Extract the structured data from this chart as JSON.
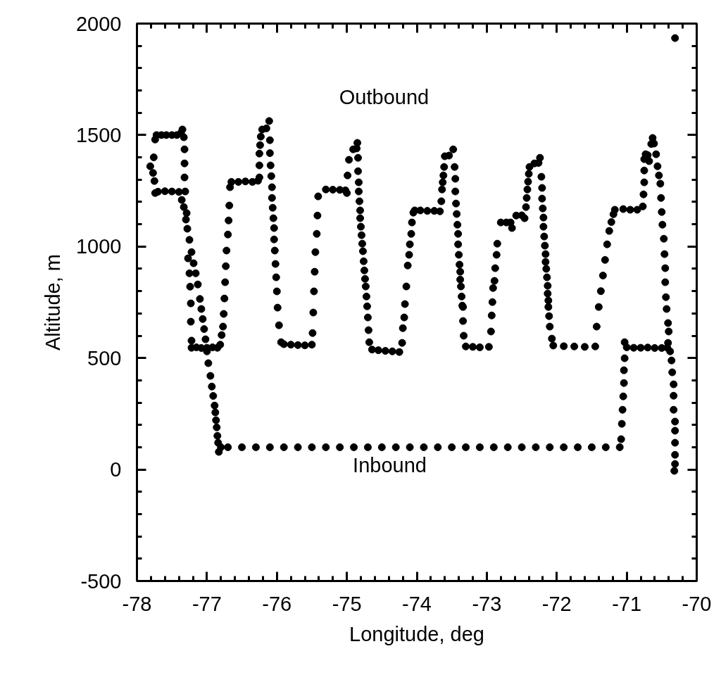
{
  "chart_data": {
    "type": "scatter",
    "xlabel": "Longitude, deg",
    "ylabel": "Altitude, m",
    "marker": "circle",
    "xlim": [
      -78,
      -70
    ],
    "ylim": [
      -500,
      2000
    ],
    "xticks": [
      -78,
      {
        "value": -77.8,
        "label": null
      },
      {
        "value": -77.6,
        "label": null
      },
      {
        "value": -77.4,
        "label": null
      },
      {
        "value": -77.2,
        "label": null
      },
      -77,
      {
        "value": -76.8,
        "label": null
      },
      {
        "value": -76.6,
        "label": null
      },
      {
        "value": -76.4,
        "label": null
      },
      {
        "value": -76.2,
        "label": null
      },
      -76,
      {
        "value": -75.8,
        "label": null
      },
      {
        "value": -75.6,
        "label": null
      },
      {
        "value": -75.4,
        "label": null
      },
      {
        "value": -75.2,
        "label": null
      },
      -75,
      {
        "value": -74.8,
        "label": null
      },
      {
        "value": -74.6,
        "label": null
      },
      {
        "value": -74.4,
        "label": null
      },
      {
        "value": -74.2,
        "label": null
      },
      -74,
      {
        "value": -73.8,
        "label": null
      },
      {
        "value": -73.6,
        "label": null
      },
      {
        "value": -73.4,
        "label": null
      },
      {
        "value": -73.2,
        "label": null
      },
      -73,
      {
        "value": -72.8,
        "label": null
      },
      {
        "value": -72.6,
        "label": null
      },
      {
        "value": -72.4,
        "label": null
      },
      {
        "value": -72.2,
        "label": null
      },
      -72,
      {
        "value": -71.8,
        "label": null
      },
      {
        "value": -71.6,
        "label": null
      },
      {
        "value": -71.4,
        "label": null
      },
      {
        "value": -71.2,
        "label": null
      },
      -71,
      {
        "value": -70.8,
        "label": null
      },
      {
        "value": -70.6,
        "label": null
      },
      {
        "value": -70.4,
        "label": null
      },
      {
        "value": -70.2,
        "label": null
      },
      -70
    ],
    "yticks": [
      -500,
      {
        "value": -400,
        "label": null
      },
      {
        "value": -300,
        "label": null
      },
      {
        "value": -200,
        "label": null
      },
      {
        "value": -100,
        "label": null
      },
      0,
      {
        "value": 100,
        "label": null
      },
      {
        "value": 200,
        "label": null
      },
      {
        "value": 300,
        "label": null
      },
      {
        "value": 400,
        "label": null
      },
      500,
      {
        "value": 600,
        "label": null
      },
      {
        "value": 700,
        "label": null
      },
      {
        "value": 800,
        "label": null
      },
      {
        "value": 900,
        "label": null
      },
      1000,
      {
        "value": 1100,
        "label": null
      },
      {
        "value": 1200,
        "label": null
      },
      {
        "value": 1300,
        "label": null
      },
      {
        "value": 1400,
        "label": null
      },
      1500,
      {
        "value": 1600,
        "label": null
      },
      {
        "value": 1700,
        "label": null
      },
      {
        "value": 1800,
        "label": null
      },
      {
        "value": 1900,
        "label": null
      },
      2000
    ],
    "annotations": [
      "Outbound",
      "Inbound"
    ],
    "series": [
      {
        "color": "#000000",
        "x": [
          -77.81,
          -77.77,
          -77.76,
          -77.74,
          -77.72,
          -77.65,
          -77.58,
          -77.5,
          -77.43,
          -77.37,
          -77.35,
          -77.33,
          -77.32,
          -77.32,
          -77.32,
          -77.31,
          -77.29,
          -77.27,
          -77.25,
          -77.24,
          -77.23,
          -77.23,
          -77.22,
          -77.22,
          -77.15,
          -77.08,
          -77.0,
          -76.92,
          -76.85,
          -76.81,
          -76.79,
          -76.77,
          -76.76,
          -76.75,
          -76.74,
          -76.73,
          -76.72,
          -76.7,
          -76.69,
          -76.68,
          -76.67,
          -76.65,
          -76.55,
          -76.45,
          -76.35,
          -76.27,
          -76.25,
          -76.25,
          -76.25,
          -76.24,
          -76.23,
          -76.21,
          -76.15,
          -76.11,
          -76.1,
          -76.1,
          -76.09,
          -76.08,
          -76.07,
          -76.07,
          -76.06,
          -76.05,
          -76.04,
          -76.04,
          -76.03,
          -76.02,
          -76.01,
          -76.0,
          -75.99,
          -75.97,
          -75.94,
          -75.9,
          -75.8,
          -75.7,
          -75.6,
          -75.5,
          -75.49,
          -75.48,
          -75.47,
          -75.46,
          -75.45,
          -75.43,
          -75.42,
          -75.41,
          -75.3,
          -75.2,
          -75.1,
          -75.02,
          -75.0,
          -74.99,
          -74.97,
          -74.91,
          -74.86,
          -74.85,
          -74.84,
          -74.84,
          -74.83,
          -74.83,
          -74.82,
          -74.81,
          -74.81,
          -74.8,
          -74.79,
          -74.78,
          -74.77,
          -74.76,
          -74.75,
          -74.74,
          -74.73,
          -74.72,
          -74.71,
          -74.7,
          -74.69,
          -74.68,
          -74.64,
          -74.55,
          -74.45,
          -74.35,
          -74.25,
          -74.21,
          -74.2,
          -74.18,
          -74.17,
          -74.15,
          -74.13,
          -74.11,
          -74.1,
          -74.08,
          -74.07,
          -74.05,
          -74.03,
          -73.95,
          -73.85,
          -73.75,
          -73.67,
          -73.65,
          -73.64,
          -73.63,
          -73.62,
          -73.61,
          -73.6,
          -73.54,
          -73.48,
          -73.46,
          -73.45,
          -73.45,
          -73.44,
          -73.43,
          -73.42,
          -73.41,
          -73.41,
          -73.4,
          -73.39,
          -73.38,
          -73.38,
          -73.37,
          -73.36,
          -73.35,
          -73.34,
          -73.34,
          -73.33,
          -73.3,
          -73.2,
          -73.1,
          -72.97,
          -72.94,
          -72.93,
          -72.92,
          -72.91,
          -72.89,
          -72.88,
          -72.86,
          -72.85,
          -72.8,
          -72.72,
          -72.66,
          -72.64,
          -72.58,
          -72.5,
          -72.46,
          -72.44,
          -72.43,
          -72.42,
          -72.41,
          -72.4,
          -72.39,
          -72.32,
          -72.26,
          -72.24,
          -72.22,
          -72.21,
          -72.21,
          -72.2,
          -72.19,
          -72.19,
          -72.18,
          -72.17,
          -72.16,
          -72.16,
          -72.15,
          -72.14,
          -72.13,
          -72.13,
          -72.12,
          -72.12,
          -72.11,
          -72.1,
          -72.07,
          -72.05,
          -71.9,
          -71.75,
          -71.6,
          -71.45,
          -71.43,
          -71.4,
          -71.37,
          -71.34,
          -71.31,
          -71.28,
          -71.25,
          -71.22,
          -71.19,
          -71.17,
          -71.05,
          -70.95,
          -70.85,
          -70.77,
          -70.76,
          -70.75,
          -70.75,
          -70.75,
          -70.73,
          -70.7,
          -70.68,
          -70.65,
          -70.63,
          -70.61,
          -70.58,
          -70.56,
          -70.54,
          -70.52,
          -70.51,
          -70.5,
          -70.49,
          -70.47,
          -70.46,
          -70.45,
          -70.45,
          -70.44,
          -70.43,
          -70.41,
          -70.4,
          -70.41,
          -70.38,
          -70.36,
          -70.35,
          -70.33,
          -70.33,
          -70.33,
          -70.31,
          -70.31,
          -70.31,
          -70.31,
          -70.31,
          -70.32
        ],
        "values": [
          1360,
          1330,
          1400,
          1480,
          1500,
          1500,
          1500,
          1500,
          1500,
          1510,
          1525,
          1490,
          1436,
          1373,
          1310,
          1247,
          1150,
          947,
          880,
          820,
          745,
          663,
          578,
          546,
          548,
          545,
          546,
          548,
          546,
          560,
          603,
          641,
          698,
          767,
          840,
          912,
          982,
          1054,
          1117,
          1184,
          1266,
          1290,
          1290,
          1292,
          1290,
          1295,
          1310,
          1364,
          1417,
          1455,
          1493,
          1525,
          1530,
          1563,
          1477,
          1419,
          1364,
          1316,
          1266,
          1218,
          1174,
          1127,
          1083,
          1032,
          982,
          922,
          862,
          799,
          726,
          647,
          571,
          562,
          560,
          558,
          557,
          560,
          612,
          704,
          799,
          887,
          975,
          1057,
          1139,
          1225,
          1256,
          1255,
          1254,
          1252,
          1240,
          1319,
          1389,
          1436,
          1440,
          1465,
          1398,
          1338,
          1288,
          1247,
          1203,
          1162,
          1127,
          1089,
          1051,
          1013,
          979,
          934,
          893,
          855,
          821,
          776,
          732,
          682,
          625,
          571,
          538,
          535,
          532,
          530,
          527,
          568,
          634,
          682,
          742,
          821,
          915,
          963,
          1010,
          1057,
          1108,
          1152,
          1162,
          1162,
          1160,
          1160,
          1158,
          1203,
          1256,
          1288,
          1319,
          1357,
          1405,
          1408,
          1436,
          1357,
          1304,
          1247,
          1193,
          1146,
          1098,
          1057,
          1010,
          963,
          919,
          887,
          852,
          821,
          776,
          735,
          729,
          666,
          600,
          552,
          550,
          548,
          550,
          619,
          691,
          751,
          814,
          846,
          903,
          963,
          1013,
          1108,
          1108,
          1108,
          1083,
          1139,
          1140,
          1127,
          1177,
          1218,
          1256,
          1291,
          1326,
          1357,
          1373,
          1375,
          1398,
          1313,
          1263,
          1215,
          1171,
          1130,
          1089,
          1045,
          1004,
          966,
          931,
          900,
          862,
          824,
          789,
          758,
          729,
          688,
          641,
          587,
          556,
          553,
          552,
          550,
          552,
          641,
          729,
          800,
          870,
          940,
          1010,
          1070,
          1110,
          1145,
          1165,
          1168,
          1165,
          1165,
          1180,
          1234,
          1288,
          1341,
          1392,
          1414,
          1410,
          1383,
          1460,
          1487,
          1462,
          1414,
          1360,
          1319,
          1282,
          1218,
          1155,
          1098,
          1035,
          966,
          903,
          840,
          773,
          720,
          657,
          619,
          568,
          530,
          489,
          436,
          382,
          331,
          268,
          215,
          174,
          120,
          66,
          25,
          -6
        ]
      },
      {
        "color": "#000000",
        "x": [
          -70.31,
          -70.42,
          -70.5,
          -70.6,
          -70.7,
          -70.8,
          -70.9,
          -71.0,
          -71.03,
          -71.03,
          -71.04,
          -71.04,
          -71.05,
          -71.06,
          -71.07,
          -71.08,
          -71.1,
          -71.3,
          -71.5,
          -71.7,
          -71.9,
          -72.1,
          -72.3,
          -72.5,
          -72.7,
          -72.9,
          -73.1,
          -73.3,
          -73.5,
          -73.7,
          -73.9,
          -74.1,
          -74.3,
          -74.5,
          -74.7,
          -74.9,
          -75.1,
          -75.3,
          -75.5,
          -75.7,
          -75.9,
          -76.1,
          -76.3,
          -76.5,
          -76.7,
          -76.8,
          -76.83,
          -76.84,
          -76.85,
          -76.86,
          -76.87,
          -76.88,
          -76.89,
          -76.91,
          -76.93,
          -76.95,
          -76.98,
          -77.0,
          -77.02,
          -77.04,
          -77.06,
          -77.08,
          -77.1,
          -77.13,
          -77.16,
          -77.19,
          -77.22,
          -77.25,
          -77.28,
          -77.3,
          -77.33,
          -77.36,
          -77.4,
          -77.5,
          -77.6,
          -77.7,
          -77.74,
          -77.75
        ],
        "values": [
          1935,
          546,
          545,
          545,
          547,
          546,
          546,
          548,
          571,
          499,
          445,
          388,
          328,
          268,
          205,
          136,
          100,
          100,
          100,
          100,
          100,
          100,
          100,
          100,
          100,
          100,
          100,
          100,
          100,
          100,
          100,
          100,
          100,
          100,
          100,
          100,
          100,
          100,
          100,
          100,
          100,
          100,
          100,
          100,
          100,
          100,
          79,
          120,
          151,
          189,
          221,
          256,
          287,
          330,
          372,
          420,
          477,
          530,
          584,
          630,
          675,
          720,
          765,
          830,
          880,
          925,
          975,
          1030,
          1080,
          1121,
          1177,
          1209,
          1245,
          1247,
          1248,
          1246,
          1240,
          1294
        ]
      }
    ]
  }
}
